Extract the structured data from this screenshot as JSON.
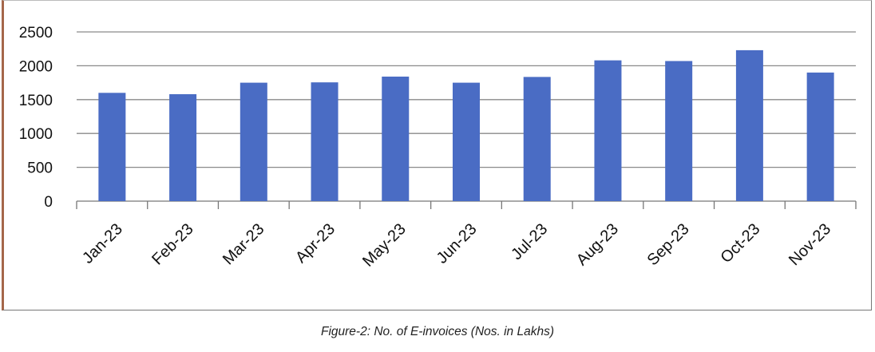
{
  "chart_data": {
    "type": "bar",
    "title": "",
    "xlabel": "",
    "ylabel": "",
    "categories": [
      "Jan-23",
      "Feb-23",
      "Mar-23",
      "Apr-23",
      "May-23",
      "Jun-23",
      "Jul-23",
      "Aug-23",
      "Sep-23",
      "Oct-23",
      "Nov-23"
    ],
    "values": [
      1600,
      1580,
      1750,
      1755,
      1840,
      1750,
      1835,
      2080,
      2070,
      2230,
      1900
    ],
    "ylim": [
      0,
      2500
    ],
    "yticks": [
      "0",
      "500",
      "1000",
      "1500",
      "2000",
      "2500"
    ],
    "grid": true,
    "legend": "none",
    "bar_color": "#4a6cc4"
  },
  "caption": "Figure-2: No. of E-invoices (Nos. in Lakhs)"
}
